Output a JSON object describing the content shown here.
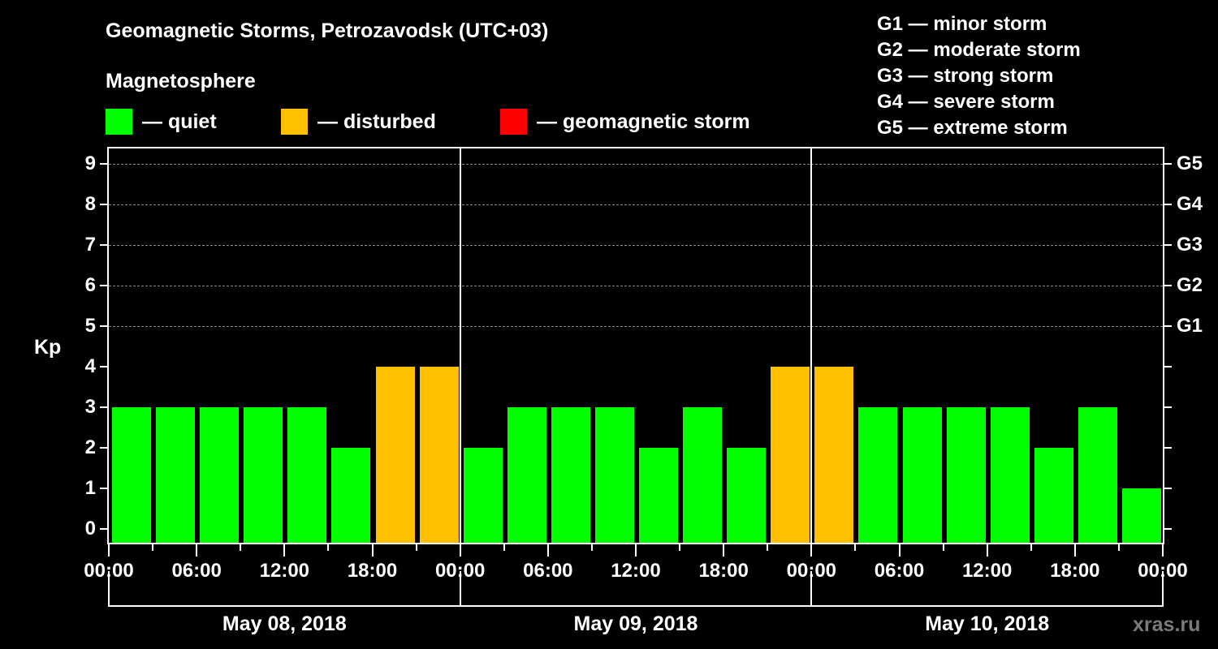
{
  "header": {
    "title": "Geomagnetic Storms, Petrozavodsk (UTC+03)",
    "subtitle": "Magnetosphere"
  },
  "legend": [
    {
      "label": "— quiet",
      "color": "#00ff00"
    },
    {
      "label": "— disturbed",
      "color": "#ffc000"
    },
    {
      "label": "— geomagnetic storm",
      "color": "#ff0000"
    }
  ],
  "storm_scale": [
    "G1 — minor storm",
    "G2 — moderate storm",
    "G3 — strong storm",
    "G4 — severe storm",
    "G5 — extreme storm"
  ],
  "watermark": "xras.ru",
  "chart_data": {
    "type": "bar",
    "title": "Geomagnetic Storms, Petrozavodsk (UTC+03)",
    "ylabel": "Kp",
    "xlabel": "",
    "ylim": [
      0,
      9
    ],
    "y_ticks": [
      0,
      1,
      2,
      3,
      4,
      5,
      6,
      7,
      8,
      9
    ],
    "right_axis_ticks": [
      {
        "kp": 5,
        "label": "G1"
      },
      {
        "kp": 6,
        "label": "G2"
      },
      {
        "kp": 7,
        "label": "G3"
      },
      {
        "kp": 8,
        "label": "G4"
      },
      {
        "kp": 9,
        "label": "G5"
      }
    ],
    "grid": "dashed horizontal at Kp 5-9",
    "x_tick_labels": [
      "00:00",
      "06:00",
      "12:00",
      "18:00",
      "00:00",
      "06:00",
      "12:00",
      "18:00",
      "00:00",
      "06:00",
      "12:00",
      "18:00",
      "00:00"
    ],
    "days": [
      "May 08, 2018",
      "May 09, 2018",
      "May 10, 2018"
    ],
    "interval_hours": 3,
    "categories": [
      "May 08 00-03",
      "May 08 03-06",
      "May 08 06-09",
      "May 08 09-12",
      "May 08 12-15",
      "May 08 15-18",
      "May 08 18-21",
      "May 08 21-24",
      "May 09 00-03",
      "May 09 03-06",
      "May 09 06-09",
      "May 09 09-12",
      "May 09 12-15",
      "May 09 15-18",
      "May 09 18-21",
      "May 09 21-24",
      "May 10 00-03",
      "May 10 03-06",
      "May 10 06-09",
      "May 10 09-12",
      "May 10 12-15",
      "May 10 15-18",
      "May 10 18-21",
      "May 10 21-24"
    ],
    "values": [
      3,
      3,
      3,
      3,
      3,
      2,
      4,
      4,
      2,
      3,
      3,
      3,
      2,
      3,
      2,
      4,
      4,
      3,
      3,
      3,
      3,
      2,
      3,
      1
    ],
    "colors": {
      "quiet": "#00ff00",
      "disturbed": "#ffc000",
      "storm": "#ff0000"
    },
    "thresholds": {
      "quiet_max": 3,
      "disturbed": 4,
      "storm_min": 5
    }
  }
}
